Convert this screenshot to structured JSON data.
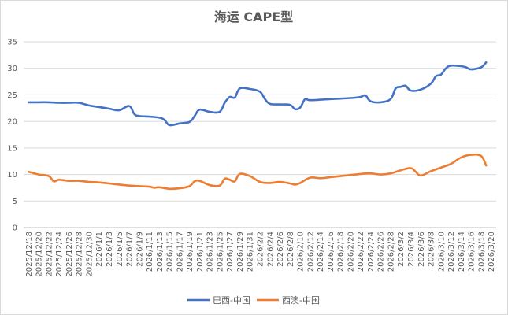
{
  "chart_data": {
    "type": "line",
    "title": "海运 CAPE型",
    "xlabel": "",
    "ylabel": "",
    "ylim": [
      0,
      35
    ],
    "yticks": [
      0,
      5,
      10,
      15,
      20,
      25,
      30,
      35
    ],
    "grid": true,
    "legend_position": "bottom",
    "x_tick_labels": [
      "2025/12/18",
      "2025/12/20",
      "2025/12/22",
      "2025/12/24",
      "2025/12/26",
      "2025/12/28",
      "2025/12/30",
      "2026/1/1",
      "2026/1/3",
      "2026/1/5",
      "2026/1/7",
      "2026/1/9",
      "2026/1/11",
      "2026/1/13",
      "2026/1/15",
      "2026/1/17",
      "2026/1/19",
      "2026/1/21",
      "2026/1/23",
      "2026/1/25",
      "2026/1/27",
      "2026/1/29",
      "2026/1/31",
      "2026/2/2",
      "2026/2/4",
      "2026/2/6",
      "2026/2/8",
      "2026/2/10",
      "2026/2/12",
      "2026/2/14",
      "2026/2/16",
      "2026/2/18",
      "2026/2/20",
      "2026/2/22",
      "2026/2/24",
      "2026/2/26",
      "2026/2/28",
      "2026/3/2",
      "2026/3/4",
      "2026/3/6",
      "2026/3/8",
      "2026/3/10",
      "2026/3/12",
      "2026/3/14",
      "2026/3/16",
      "2026/3/18",
      "2026/3/20"
    ],
    "series": [
      {
        "name": "巴西-中国",
        "color": "#4472C4",
        "points": [
          [
            0,
            23.6
          ],
          [
            1,
            23.6
          ],
          [
            2,
            23.6
          ],
          [
            3,
            23.5
          ],
          [
            4,
            23.5
          ],
          [
            5,
            23.5
          ],
          [
            6,
            23.0
          ],
          [
            7,
            22.7
          ],
          [
            8,
            22.4
          ],
          [
            9,
            22.1
          ],
          [
            10,
            22.9
          ],
          [
            10.5,
            21.4
          ],
          [
            11,
            21.0
          ],
          [
            12,
            20.9
          ],
          [
            13,
            20.7
          ],
          [
            13.5,
            20.3
          ],
          [
            14,
            19.3
          ],
          [
            15,
            19.6
          ],
          [
            16,
            19.9
          ],
          [
            16.5,
            21.0
          ],
          [
            17,
            22.2
          ],
          [
            18,
            21.8
          ],
          [
            19,
            21.8
          ],
          [
            19.5,
            23.5
          ],
          [
            20,
            24.6
          ],
          [
            20.5,
            24.5
          ],
          [
            21,
            26.2
          ],
          [
            22,
            26.1
          ],
          [
            23,
            25.6
          ],
          [
            23.5,
            24.2
          ],
          [
            24,
            23.3
          ],
          [
            25,
            23.2
          ],
          [
            26,
            23.1
          ],
          [
            26.5,
            22.3
          ],
          [
            27,
            22.6
          ],
          [
            27.5,
            24.2
          ],
          [
            28,
            24.0
          ],
          [
            30,
            24.2
          ],
          [
            32,
            24.4
          ],
          [
            33,
            24.6
          ],
          [
            33.5,
            24.9
          ],
          [
            34,
            23.8
          ],
          [
            35,
            23.6
          ],
          [
            36,
            24.2
          ],
          [
            36.5,
            26.2
          ],
          [
            37,
            26.5
          ],
          [
            37.5,
            26.7
          ],
          [
            38,
            25.8
          ],
          [
            39,
            26.0
          ],
          [
            40,
            27.1
          ],
          [
            40.5,
            28.5
          ],
          [
            41,
            28.8
          ],
          [
            41.5,
            30.0
          ],
          [
            42,
            30.5
          ],
          [
            43,
            30.4
          ],
          [
            43.5,
            30.2
          ],
          [
            44,
            29.8
          ],
          [
            45,
            30.2
          ],
          [
            45.5,
            31.1
          ]
        ]
      },
      {
        "name": "西澳-中国",
        "color": "#ED7D31",
        "points": [
          [
            0,
            10.5
          ],
          [
            1,
            10.0
          ],
          [
            2,
            9.7
          ],
          [
            2.5,
            8.7
          ],
          [
            3,
            9.0
          ],
          [
            4,
            8.8
          ],
          [
            5,
            8.8
          ],
          [
            6,
            8.6
          ],
          [
            7,
            8.5
          ],
          [
            8,
            8.3
          ],
          [
            9,
            8.1
          ],
          [
            10,
            7.9
          ],
          [
            11,
            7.8
          ],
          [
            12,
            7.7
          ],
          [
            12.5,
            7.5
          ],
          [
            13,
            7.6
          ],
          [
            14,
            7.3
          ],
          [
            15,
            7.4
          ],
          [
            16,
            7.8
          ],
          [
            16.5,
            8.7
          ],
          [
            17,
            8.8
          ],
          [
            18,
            8.0
          ],
          [
            19,
            7.9
          ],
          [
            19.5,
            9.2
          ],
          [
            20,
            9.0
          ],
          [
            20.5,
            8.7
          ],
          [
            21,
            10.1
          ],
          [
            22,
            9.7
          ],
          [
            23,
            8.6
          ],
          [
            24,
            8.4
          ],
          [
            25,
            8.6
          ],
          [
            26,
            8.3
          ],
          [
            26.5,
            8.1
          ],
          [
            27,
            8.4
          ],
          [
            28,
            9.4
          ],
          [
            29,
            9.3
          ],
          [
            30,
            9.5
          ],
          [
            31,
            9.7
          ],
          [
            32,
            9.9
          ],
          [
            33,
            10.1
          ],
          [
            34,
            10.2
          ],
          [
            35,
            10.0
          ],
          [
            36,
            10.2
          ],
          [
            37,
            10.8
          ],
          [
            38,
            11.2
          ],
          [
            38.5,
            10.5
          ],
          [
            39,
            9.8
          ],
          [
            40,
            10.6
          ],
          [
            41,
            11.3
          ],
          [
            42,
            12.0
          ],
          [
            43,
            13.2
          ],
          [
            44,
            13.7
          ],
          [
            45,
            13.5
          ],
          [
            45.5,
            11.7
          ]
        ]
      }
    ]
  }
}
